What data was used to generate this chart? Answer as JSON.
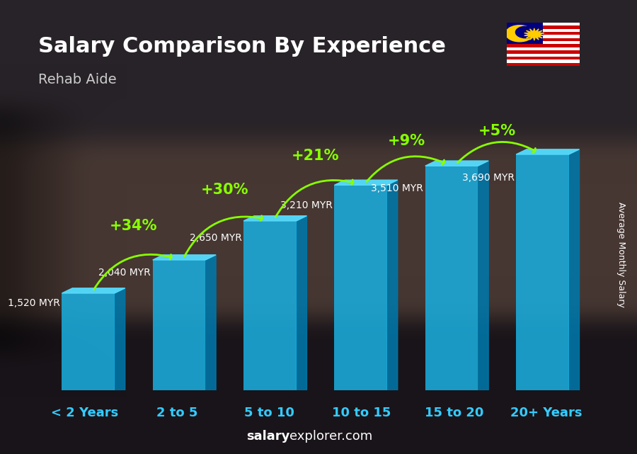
{
  "title": "Salary Comparison By Experience",
  "subtitle": "Rehab Aide",
  "ylabel": "Average Monthly Salary",
  "categories": [
    "< 2 Years",
    "2 to 5",
    "5 to 10",
    "10 to 15",
    "15 to 20",
    "20+ Years"
  ],
  "values": [
    1520,
    2040,
    2650,
    3210,
    3510,
    3690
  ],
  "pct_changes": [
    "+34%",
    "+30%",
    "+21%",
    "+9%",
    "+5%"
  ],
  "salary_labels": [
    "1,520 MYR",
    "2,040 MYR",
    "2,650 MYR",
    "3,210 MYR",
    "3,510 MYR",
    "3,690 MYR"
  ],
  "bar_color_face": "#1AACDC",
  "bar_color_side": "#0077AA",
  "bar_color_top": "#55DDFF",
  "background_color": "#1a1a2e",
  "title_color": "#FFFFFF",
  "subtitle_color": "#CCCCCC",
  "pct_color": "#88FF00",
  "tick_color": "#33CCFF",
  "bar_width": 0.58,
  "ylim": [
    0,
    4400
  ],
  "photo_bg": true
}
